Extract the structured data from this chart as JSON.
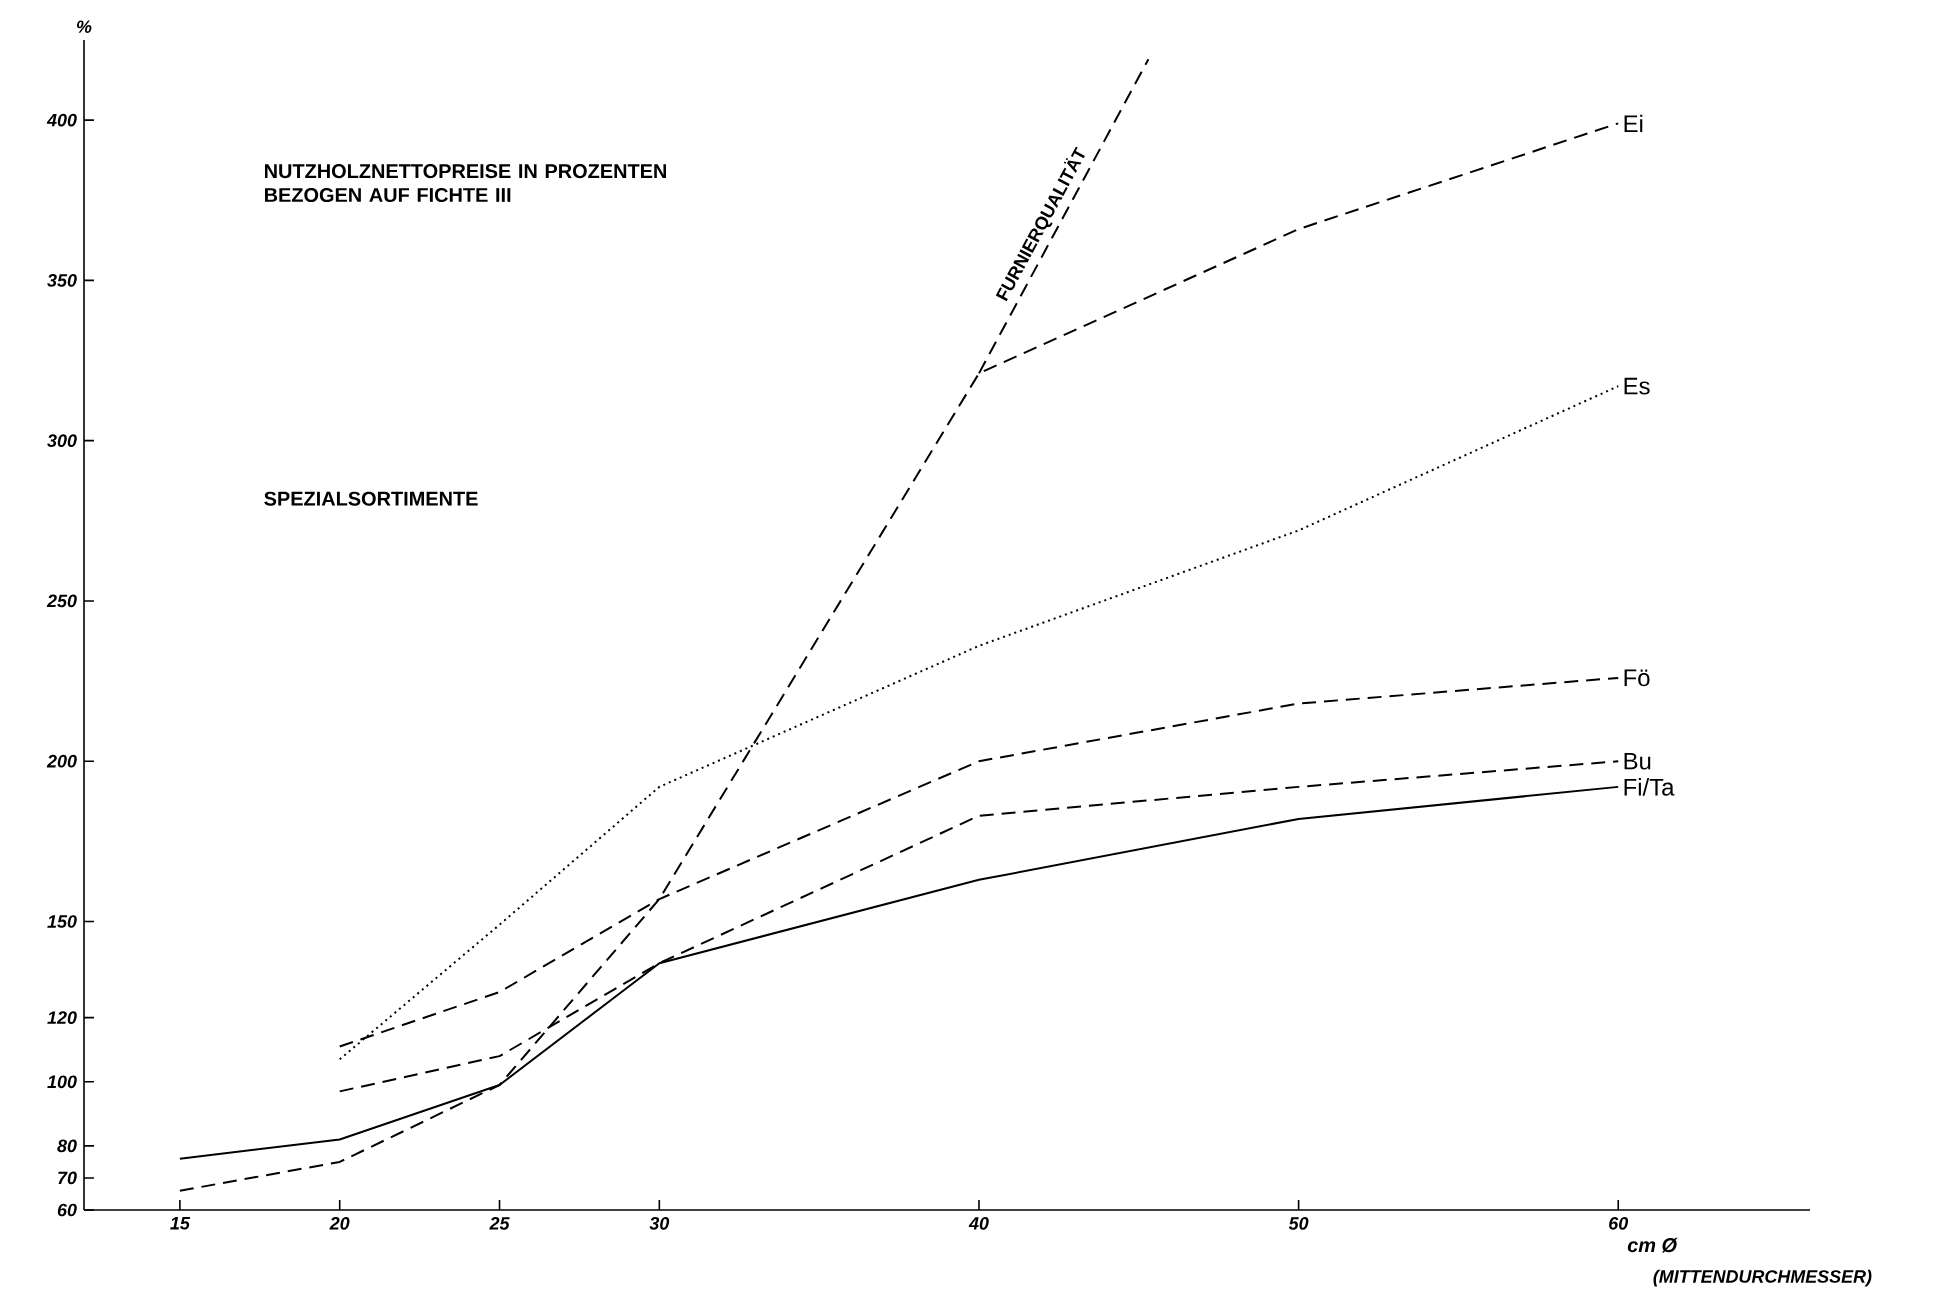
{
  "chart_data": {
    "type": "line",
    "title": "NUTZHOLZNETTOPREISE IN PROZENTEN BEZOGEN AUF FICHTE III",
    "subtitle": "SPEZIALSORTIMENTE",
    "xlabel": "cm Ø",
    "ylabel": "%",
    "annotations": [
      "(MITTENDURCHMESSER)"
    ],
    "xlim": [
      12,
      66
    ],
    "ylim": [
      60,
      425
    ],
    "xticks": [
      15,
      20,
      25,
      30,
      40,
      50,
      60
    ],
    "yticks": [
      60,
      70,
      80,
      100,
      120,
      150,
      200,
      250,
      300,
      350,
      400
    ],
    "grid": false,
    "series": [
      {
        "name": "Ei",
        "color": "#000000",
        "line_style": "dashed",
        "x": [
          15,
          20,
          25,
          30,
          40,
          50,
          60
        ],
        "values": [
          66,
          75,
          99,
          157,
          321,
          366,
          399
        ]
      },
      {
        "name": "FURNIERQUALITÄT",
        "color": "#000000",
        "line_style": "dashed",
        "x": [
          40,
          45.3
        ],
        "values": [
          321,
          419
        ]
      },
      {
        "name": "Es",
        "color": "#000000",
        "line_style": "dotted",
        "x": [
          20,
          25,
          30,
          40,
          50,
          60
        ],
        "values": [
          107,
          149,
          192,
          236,
          272,
          317
        ]
      },
      {
        "name": "Fö",
        "color": "#000000",
        "line_style": "dashed",
        "x": [
          20,
          25,
          30,
          40,
          50,
          60
        ],
        "values": [
          111,
          128,
          157,
          200,
          218,
          226
        ]
      },
      {
        "name": "Bu",
        "color": "#000000",
        "line_style": "dashed",
        "x": [
          20,
          25,
          30,
          40,
          50,
          60
        ],
        "values": [
          97,
          108,
          137,
          183,
          192,
          200
        ]
      },
      {
        "name": "Fi/Ta",
        "color": "#000000",
        "line_style": "solid",
        "x": [
          15,
          20,
          25,
          30,
          40,
          50,
          60
        ],
        "values": [
          76,
          82,
          99,
          137,
          163,
          182,
          192
        ]
      }
    ]
  }
}
